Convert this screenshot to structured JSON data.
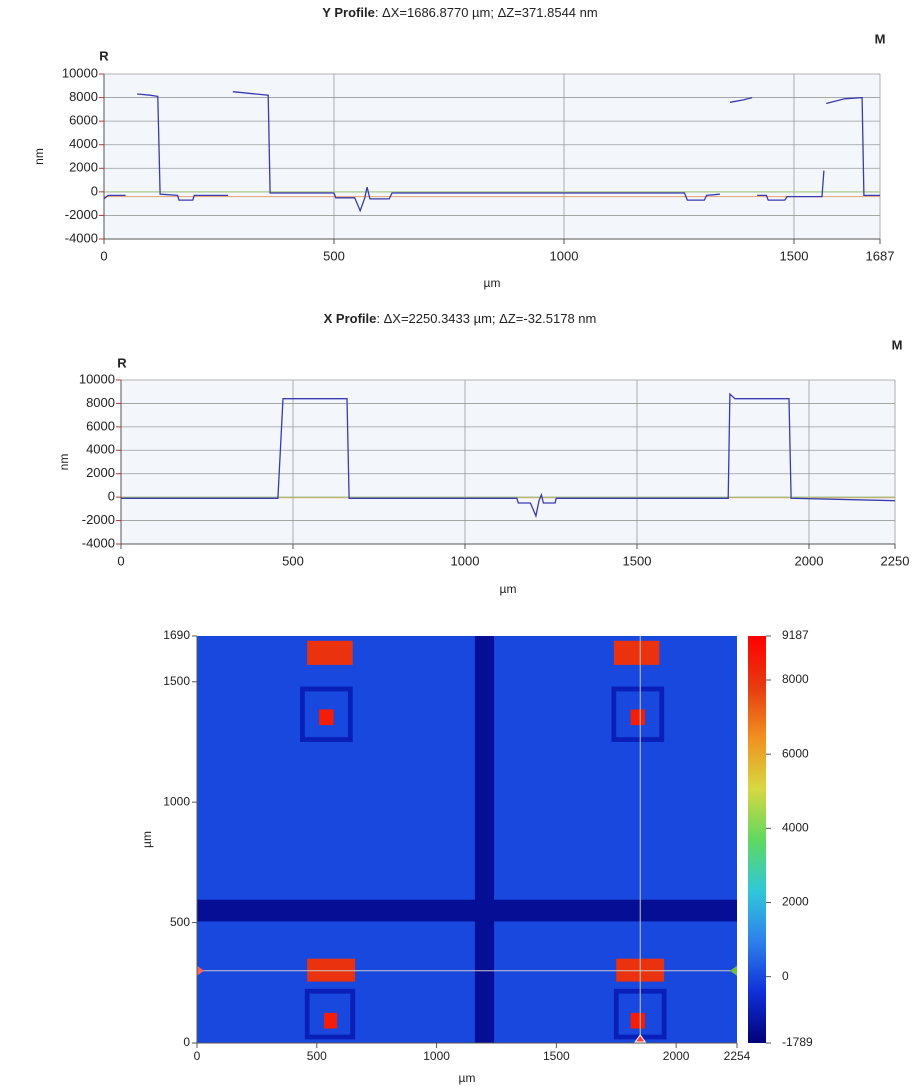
{
  "chart_data": [
    {
      "type": "line",
      "title": "Y Profile",
      "title_detail": ": ΔX=1686.8770 µm; ΔZ=371.8544 nm",
      "markers": [
        {
          "text": "R",
          "color": "#d42020"
        },
        {
          "text": "M",
          "color": "#2e7d1e"
        }
      ],
      "xlabel": "µm",
      "ylabel": "nm",
      "grid": true,
      "xlim": [
        0,
        1687
      ],
      "xticks": [
        0,
        500,
        1000,
        1500,
        1687
      ],
      "ylim": [
        -4000,
        10000
      ],
      "yticks": [
        -4000,
        -2000,
        0,
        2000,
        4000,
        6000,
        8000,
        10000
      ],
      "reference_lines": [
        {
          "value": -400,
          "color": "#e8a070"
        },
        {
          "value": 0,
          "color": "#9cc47a"
        }
      ],
      "series": [
        {
          "color": "#3a3ab0",
          "x": [
            0,
            9,
            47,
            null,
            72,
            100,
            117,
            122,
            160,
            163,
            193,
            196,
            270,
            null,
            280,
            330,
            357,
            361,
            500,
            504,
            545,
            557,
            567,
            572,
            578,
            620,
            626,
            1262,
            1268,
            1305,
            1310,
            1339,
            null,
            1361,
            1390,
            1409,
            null,
            1420,
            1440,
            1444,
            1480,
            1485,
            1561,
            1565,
            null,
            1570,
            1610,
            1648,
            1652,
            1687
          ],
          "values": [
            -600,
            -300,
            -300,
            null,
            8300,
            8200,
            8100,
            -200,
            -300,
            -700,
            -700,
            -300,
            -300,
            null,
            8500,
            8300,
            8200,
            -100,
            -100,
            -500,
            -500,
            -1600,
            -500,
            400,
            -600,
            -600,
            -100,
            -100,
            -700,
            -700,
            -300,
            -200,
            null,
            7600,
            7800,
            8000,
            null,
            -300,
            -300,
            -700,
            -700,
            -400,
            -400,
            1800,
            null,
            7500,
            7900,
            8000,
            -300,
            -300
          ]
        }
      ]
    },
    {
      "type": "line",
      "title": "X Profile",
      "title_detail": ": ΔX=2250.3433 µm; ΔZ=-32.5178 nm",
      "markers": [
        {
          "text": "R",
          "color": "#d42020"
        },
        {
          "text": "M",
          "color": "#2e7d1e"
        }
      ],
      "xlabel": "µm",
      "ylabel": "nm",
      "grid": true,
      "xlim": [
        0,
        2250
      ],
      "xticks": [
        0,
        500,
        1000,
        1500,
        2000,
        2250
      ],
      "ylim": [
        -4000,
        10000
      ],
      "yticks": [
        -4000,
        -2000,
        0,
        2000,
        4000,
        6000,
        8000,
        10000
      ],
      "reference_lines": [
        {
          "value": -50,
          "color": "#e8a070"
        },
        {
          "value": 0,
          "color": "#9cc47a"
        }
      ],
      "series": [
        {
          "color": "#3a3ab0",
          "x": [
            0,
            456,
            471,
            560,
            657,
            663,
            1151,
            1155,
            1190,
            1206,
            1215,
            1222,
            1228,
            1262,
            1265,
            1765,
            1770,
            1785,
            1942,
            1948,
            2250
          ],
          "values": [
            -100,
            -100,
            8400,
            8400,
            8400,
            -100,
            -100,
            -500,
            -500,
            -1600,
            -300,
            200,
            -500,
            -500,
            -100,
            -100,
            8800,
            8400,
            8400,
            -100,
            -300
          ]
        }
      ]
    },
    {
      "type": "heatmap",
      "xlabel": "µm",
      "ylabel": "µm",
      "xlim": [
        0,
        2254
      ],
      "xticks": [
        0,
        500,
        1000,
        1500,
        2000,
        2254
      ],
      "ylim": [
        0,
        1690
      ],
      "yticks": [
        0,
        500,
        1000,
        1500,
        1690
      ],
      "clim": [
        -1789,
        9187
      ],
      "cticks": [
        -1789,
        0,
        2000,
        4000,
        6000,
        8000,
        9187
      ],
      "colormap": [
        "#00007a",
        "#1030d8",
        "#2e80ec",
        "#30c8d8",
        "#60d860",
        "#d8d840",
        "#f09020",
        "#e83a10",
        "#ff0000"
      ],
      "crosshair": {
        "x": 1850,
        "y": 300,
        "color": "#c8c8c8"
      },
      "regions": [
        {
          "x": [
            0,
            2254
          ],
          "y": [
            0,
            1690
          ],
          "z": 0
        },
        {
          "x": [
            1160,
            1240
          ],
          "y": [
            0,
            1690
          ],
          "z": -1400
        },
        {
          "x": [
            0,
            2254
          ],
          "y": [
            505,
            595
          ],
          "z": -1400
        },
        {
          "x": [
            430,
            650
          ],
          "y": [
            1250,
            1480
          ],
          "z": -900
        },
        {
          "x": [
            450,
            630
          ],
          "y": [
            1270,
            1460
          ],
          "z": 0
        },
        {
          "x": [
            510,
            570
          ],
          "y": [
            1320,
            1385
          ],
          "z": 8500
        },
        {
          "x": [
            460,
            650
          ],
          "y": [
            1570,
            1670
          ],
          "z": 8000
        },
        {
          "x": [
            1730,
            1950
          ],
          "y": [
            1250,
            1480
          ],
          "z": -900
        },
        {
          "x": [
            1750,
            1930
          ],
          "y": [
            1270,
            1460
          ],
          "z": 0
        },
        {
          "x": [
            1810,
            1870
          ],
          "y": [
            1320,
            1385
          ],
          "z": 8500
        },
        {
          "x": [
            1740,
            1930
          ],
          "y": [
            1570,
            1670
          ],
          "z": 8000
        },
        {
          "x": [
            460,
            660
          ],
          "y": [
            255,
            350
          ],
          "z": 8000
        },
        {
          "x": [
            450,
            660
          ],
          "y": [
            15,
            225
          ],
          "z": -900
        },
        {
          "x": [
            470,
            640
          ],
          "y": [
            35,
            205
          ],
          "z": 0
        },
        {
          "x": [
            530,
            585
          ],
          "y": [
            60,
            125
          ],
          "z": 8500
        },
        {
          "x": [
            1750,
            1950
          ],
          "y": [
            255,
            350
          ],
          "z": 8000
        },
        {
          "x": [
            1740,
            1960
          ],
          "y": [
            15,
            225
          ],
          "z": -900
        },
        {
          "x": [
            1760,
            1940
          ],
          "y": [
            35,
            205
          ],
          "z": 0
        },
        {
          "x": [
            1810,
            1870
          ],
          "y": [
            60,
            125
          ],
          "z": 8500
        }
      ]
    }
  ]
}
